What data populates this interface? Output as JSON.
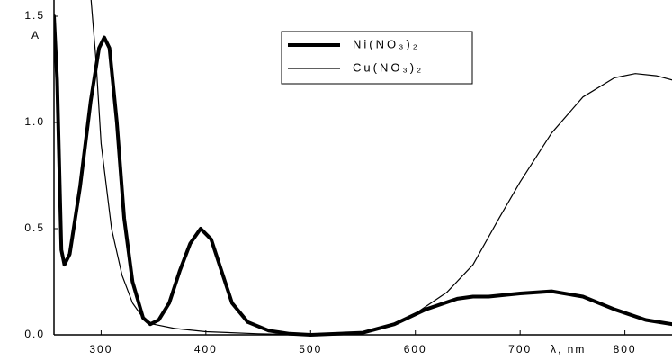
{
  "chart_data": {
    "type": "line",
    "y_label": "A",
    "x_label": "λ, nm",
    "xlim": [
      255,
      845
    ],
    "ylim": [
      0,
      1.5
    ],
    "xticks": [
      300,
      400,
      500,
      600,
      700,
      800
    ],
    "yticks": [
      {
        "value": 0,
        "label": "0.0"
      },
      {
        "value": 0.5,
        "label": "0.5"
      },
      {
        "value": 1,
        "label": "1.0"
      },
      {
        "value": 1.5,
        "label": "1.5"
      }
    ],
    "series": [
      {
        "name": "Ni(NO₃)₂",
        "color": "#000000",
        "linewidth": 4,
        "x": [
          255,
          258,
          262,
          265,
          270,
          280,
          290,
          298,
          303,
          308,
          315,
          322,
          330,
          340,
          347,
          355,
          365,
          375,
          385,
          395,
          405,
          415,
          425,
          440,
          460,
          480,
          500,
          550,
          580,
          610,
          640,
          655,
          670,
          700,
          730,
          760,
          790,
          820,
          845
        ],
        "values": [
          1.5,
          1.2,
          0.4,
          0.33,
          0.38,
          0.7,
          1.1,
          1.35,
          1.4,
          1.35,
          1.0,
          0.55,
          0.25,
          0.08,
          0.05,
          0.07,
          0.15,
          0.3,
          0.43,
          0.5,
          0.45,
          0.3,
          0.15,
          0.06,
          0.02,
          0.005,
          0,
          0.01,
          0.05,
          0.12,
          0.17,
          0.18,
          0.18,
          0.195,
          0.205,
          0.18,
          0.12,
          0.07,
          0.05
        ]
      },
      {
        "name": "Cu(NO₃)₂",
        "color": "#000000",
        "linewidth": 1.2,
        "x": [
          290,
          295,
          300,
          310,
          320,
          330,
          340,
          350,
          370,
          400,
          450,
          500,
          550,
          580,
          600,
          630,
          655,
          680,
          700,
          730,
          760,
          790,
          810,
          830,
          845
        ],
        "values": [
          1.6,
          1.3,
          0.9,
          0.5,
          0.28,
          0.15,
          0.08,
          0.05,
          0.03,
          0.015,
          0.005,
          0,
          0.01,
          0.05,
          0.1,
          0.2,
          0.33,
          0.55,
          0.72,
          0.95,
          1.12,
          1.21,
          1.23,
          1.22,
          1.2
        ]
      }
    ]
  }
}
